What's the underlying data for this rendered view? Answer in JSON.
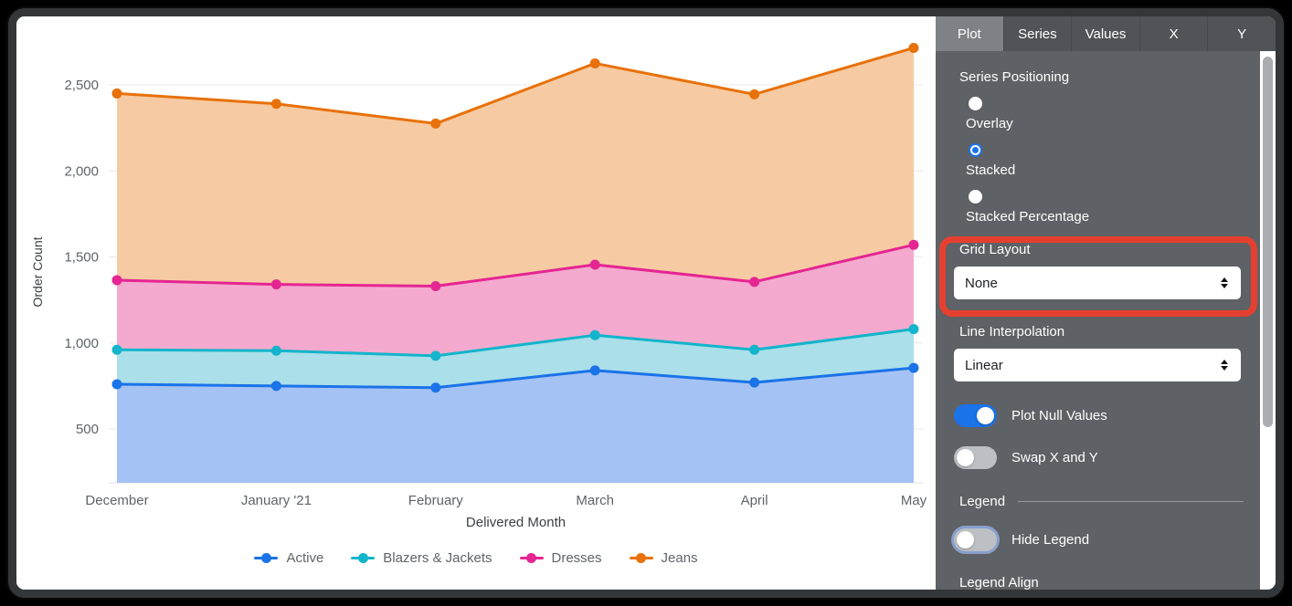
{
  "panel": {
    "tabs": [
      {
        "label": "Plot",
        "selected": true
      },
      {
        "label": "Series",
        "selected": false
      },
      {
        "label": "Values",
        "selected": false
      },
      {
        "label": "X",
        "selected": false
      },
      {
        "label": "Y",
        "selected": false
      }
    ],
    "series_positioning": {
      "label": "Series Positioning",
      "options": [
        {
          "label": "Overlay",
          "selected": false
        },
        {
          "label": "Stacked",
          "selected": true
        },
        {
          "label": "Stacked Percentage",
          "selected": false
        }
      ]
    },
    "grid_layout": {
      "label": "Grid Layout",
      "value": "None",
      "highlighted": true
    },
    "line_interpolation": {
      "label": "Line Interpolation",
      "value": "Linear"
    },
    "plot_null_values": {
      "label": "Plot Null Values",
      "on": true
    },
    "swap_x_y": {
      "label": "Swap X and Y",
      "on": false
    },
    "legend_section": {
      "label": "Legend"
    },
    "hide_legend": {
      "label": "Hide Legend",
      "on": false,
      "focused": true
    },
    "legend_align": {
      "label": "Legend Align"
    },
    "highlight_color": "#E5402F",
    "accent_color": "#1A73E8"
  },
  "chart_data": {
    "type": "area",
    "stacked": true,
    "x": [
      "December",
      "January '21",
      "February",
      "March",
      "April",
      "May"
    ],
    "xlabel": "Delivered Month",
    "ylabel": "Order Count",
    "yticks": [
      500,
      1000,
      1500,
      2000,
      2500
    ],
    "grid": "horizontal",
    "legend_position": "bottom",
    "series": [
      {
        "name": "Active",
        "color": "#1A73E8",
        "fill": "#A5C2F4",
        "values": [
          760,
          750,
          740,
          840,
          770,
          855
        ],
        "cumulative": [
          760,
          750,
          740,
          840,
          770,
          855
        ]
      },
      {
        "name": "Blazers & Jackets",
        "color": "#12B5CB",
        "fill": "#ABDFE9",
        "values": [
          200,
          205,
          185,
          205,
          190,
          225
        ],
        "cumulative": [
          960,
          955,
          925,
          1045,
          960,
          1080
        ]
      },
      {
        "name": "Dresses",
        "color": "#E52592",
        "fill": "#F4A9CE",
        "values": [
          405,
          385,
          405,
          410,
          395,
          490
        ],
        "cumulative": [
          1365,
          1340,
          1330,
          1455,
          1355,
          1570
        ]
      },
      {
        "name": "Jeans",
        "color": "#E8710A",
        "fill": "#F6CBA3",
        "values": [
          1085,
          1050,
          945,
          1170,
          1090,
          1145
        ],
        "cumulative": [
          2450,
          2390,
          2275,
          2625,
          2445,
          2715
        ]
      }
    ]
  }
}
